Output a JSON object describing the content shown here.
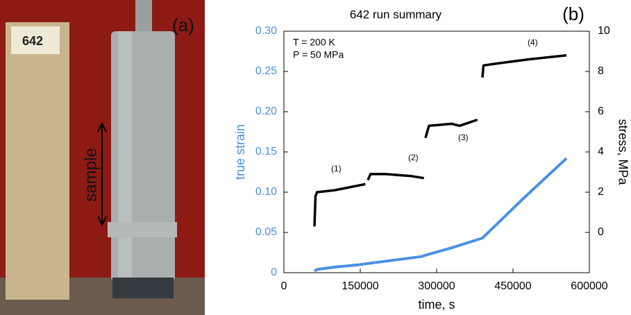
{
  "photo": {
    "panel_label": "(a)",
    "tag": "642",
    "annotation": "sample"
  },
  "chart_data": {
    "type": "line",
    "title": "642 run summary",
    "panel_label": "(b)",
    "xlabel": "time, s",
    "ylabel": "true strain",
    "y2label": "stress, MPa",
    "xlim": [
      0,
      600000
    ],
    "xticks": [
      0,
      150000,
      300000,
      450000,
      600000
    ],
    "ylim": [
      0,
      0.3
    ],
    "yticks": [
      0,
      0.05,
      {
        "value": 0.1,
        "label": "0.10"
      },
      0.15,
      {
        "value": 0.2,
        "label": "0.20"
      },
      0.25,
      {
        "value": 0.3,
        "label": "0.30"
      }
    ],
    "y2lim": [
      -2,
      10
    ],
    "y2ticks": [
      0,
      2,
      4,
      6,
      8,
      10
    ],
    "annotations": [
      "T = 200 K",
      "P = 50 MPa",
      "(1)",
      "(2)",
      "(3)",
      "(4)"
    ],
    "series": [
      {
        "color": "#4a90e2",
        "axis": "y",
        "x": [
          60000,
          65000,
          100000,
          150000,
          160000,
          270000,
          280000,
          330000,
          390000,
          470000,
          555000
        ],
        "values": [
          0.002,
          0.004,
          0.007,
          0.01,
          0.011,
          0.02,
          0.022,
          0.031,
          0.043,
          0.092,
          0.142
        ]
      },
      {
        "color": "#000000",
        "axis": "y2",
        "x": [
          60000,
          62000,
          65000,
          100000,
          140000,
          160000,
          162000,
          165000,
          170000,
          200000,
          250000,
          275000,
          276000,
          278000,
          285000,
          330000,
          345000,
          380000,
          386000,
          390000,
          392000,
          420000,
          480000,
          555000
        ],
        "values": [
          0.3,
          1.8,
          2.0,
          2.1,
          2.3,
          2.4,
          null,
          2.6,
          2.9,
          2.9,
          2.8,
          2.7,
          null,
          4.7,
          5.3,
          5.4,
          5.3,
          5.6,
          null,
          7.7,
          8.3,
          8.4,
          8.6,
          8.8
        ]
      }
    ]
  }
}
